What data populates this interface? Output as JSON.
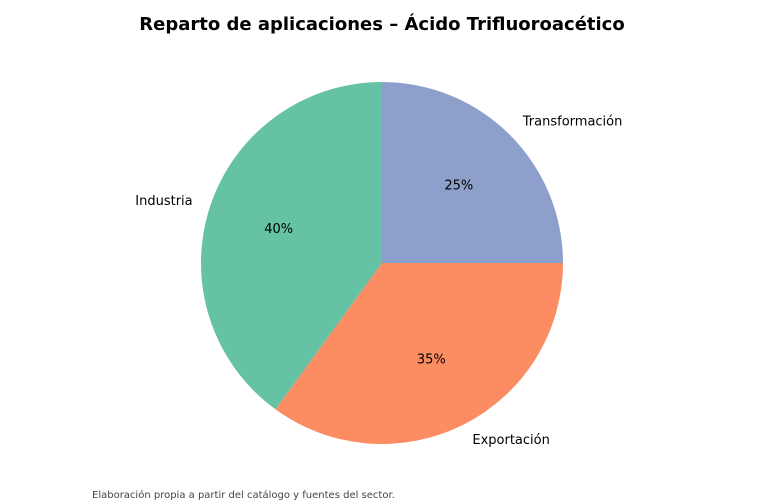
{
  "chart_data": {
    "type": "pie",
    "title": "Reparto de aplicaciones – Ácido Trifluoroacético",
    "categories": [
      "Industria",
      "Exportación",
      "Transformación"
    ],
    "values": [
      40,
      35,
      25
    ],
    "value_labels": [
      "40%",
      "35%",
      "25%"
    ],
    "colors": [
      "#66c2a5",
      "#fc8d62",
      "#8da0cb"
    ],
    "start_angle": 90,
    "note": "Elaboración propia a partir del catálogo y fuentes del sector."
  }
}
